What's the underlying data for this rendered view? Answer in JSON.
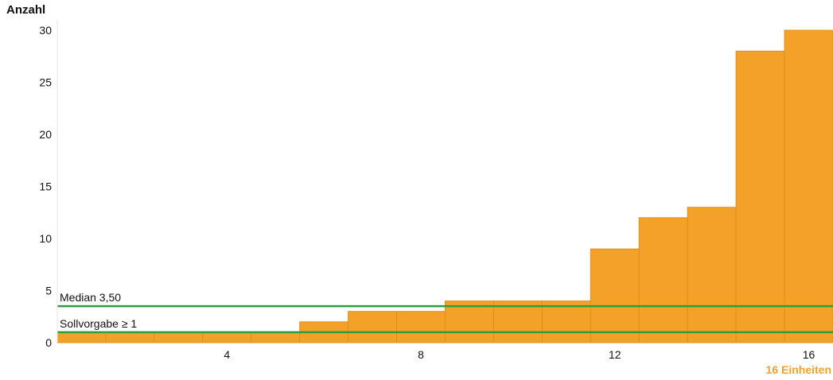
{
  "chart_data": {
    "type": "bar",
    "ylabel": "Anzahl",
    "xunit_label": "16 Einheiten",
    "x": [
      1,
      2,
      3,
      4,
      5,
      6,
      7,
      8,
      9,
      10,
      11,
      12,
      13,
      14,
      15,
      16
    ],
    "values": [
      1,
      1,
      1,
      1,
      1,
      2,
      3,
      3,
      4,
      4,
      4,
      9,
      12,
      13,
      28,
      30
    ],
    "xticks": [
      4,
      8,
      12,
      16
    ],
    "yticks": [
      0,
      5,
      10,
      15,
      20,
      25,
      30
    ],
    "xlim": [
      0.5,
      16.5
    ],
    "ylim": [
      0,
      31
    ],
    "bar_color": "#f4a12a",
    "bar_edge_color": "#e08f1b",
    "reference_lines": [
      {
        "label": "Median 3,50",
        "value": 3.5,
        "color": "#2e9e3a"
      },
      {
        "label": "Sollvorgabe ≥ 1",
        "value": 1,
        "color": "#2e9e3a"
      }
    ]
  }
}
